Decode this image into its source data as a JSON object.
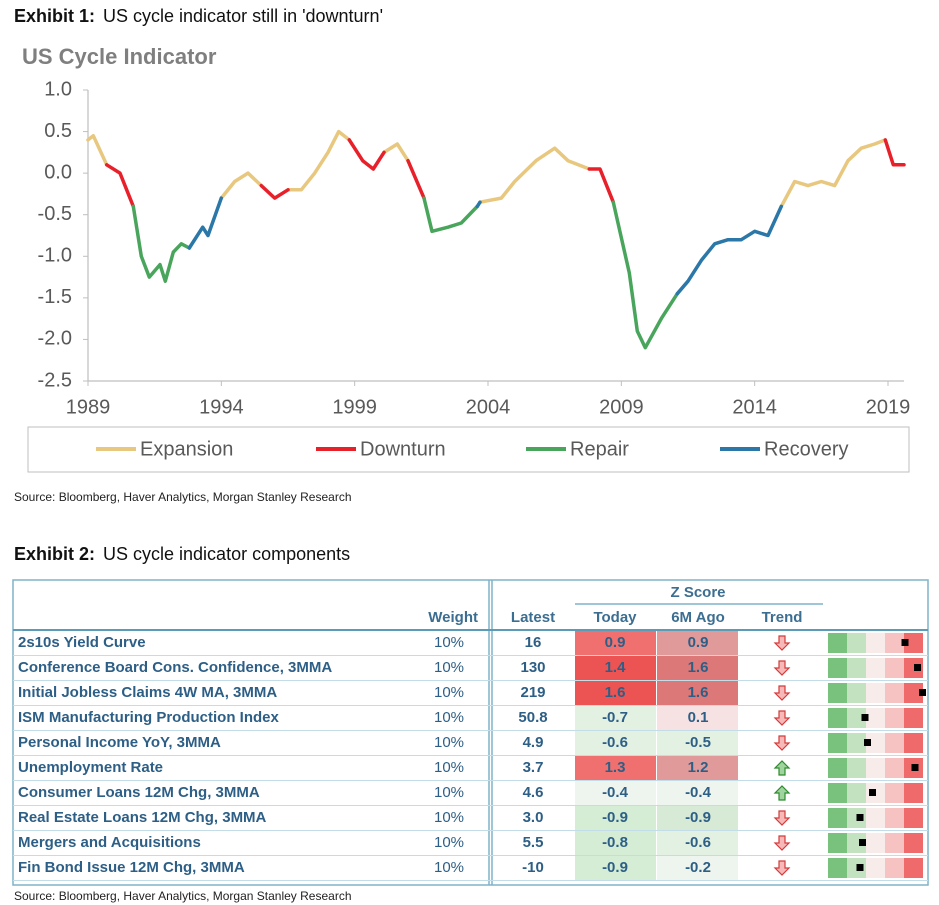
{
  "exhibit1": {
    "label": "Exhibit 1:",
    "caption": "US cycle indicator still in 'downturn'",
    "source": "Source: Bloomberg, Haver Analytics, Morgan Stanley Research"
  },
  "chart_data": {
    "type": "line",
    "title": "US Cycle Indicator",
    "x": [
      1989,
      1989.2,
      1989.7,
      1990.2,
      1990.7,
      1991,
      1991.3,
      1991.7,
      1991.9,
      1992.2,
      1992.5,
      1992.8,
      1993.3,
      1993.5,
      1994,
      1994.5,
      1995,
      1995.5,
      1996,
      1996.5,
      1997,
      1997.5,
      1998,
      1998.4,
      1998.8,
      1999.3,
      1999.7,
      2000.1,
      2000.6,
      2001,
      2001.6,
      2001.9,
      2002.5,
      2003,
      2003.6,
      2003.7,
      2004.5,
      2005,
      2005.8,
      2006.5,
      2007,
      2007.8,
      2008.2,
      2008.7,
      2009.3,
      2009.6,
      2009.9,
      2010.5,
      2011.1,
      2011.5,
      2012,
      2012.5,
      2013,
      2013.5,
      2014,
      2014.5,
      2015,
      2015.5,
      2016,
      2016.5,
      2017,
      2017.5,
      2018,
      2018.5,
      2018.9,
      2019.2,
      2019.6
    ],
    "xlim": [
      1989,
      2019.6
    ],
    "xticks": [
      1989,
      1994,
      1999,
      2004,
      2009,
      2014,
      2019
    ],
    "ylim": [
      -2.5,
      1
    ],
    "yticks": [
      {
        "value": 1,
        "label": "1.0"
      },
      0.5,
      {
        "value": 0,
        "label": "0.0"
      },
      -0.5,
      {
        "value": -1,
        "label": "-1.0"
      },
      -1.5,
      {
        "value": -2,
        "label": "-2.0"
      },
      -2.5
    ],
    "legend": "bottom",
    "series": [
      {
        "name": "Expansion",
        "color": "#e8c77f",
        "values": [
          0.4,
          0.45,
          0.1,
          null,
          null,
          null,
          null,
          null,
          null,
          null,
          null,
          null,
          null,
          null,
          -0.3,
          -0.1,
          0,
          -0.15,
          null,
          -0.2,
          -0.2,
          0,
          0.25,
          0.5,
          0.4,
          null,
          null,
          0.25,
          0.35,
          0.15,
          null,
          null,
          null,
          null,
          null,
          -0.35,
          -0.3,
          -0.1,
          0.15,
          0.3,
          0.15,
          0.05,
          null,
          null,
          null,
          null,
          null,
          null,
          null,
          null,
          null,
          null,
          null,
          null,
          null,
          null,
          -0.4,
          -0.1,
          -0.15,
          -0.1,
          -0.15,
          0.15,
          0.3,
          0.35,
          0.4,
          null,
          null
        ]
      },
      {
        "name": "Downturn",
        "color": "#e8202a",
        "values": [
          null,
          null,
          0.1,
          0,
          -0.4,
          null,
          null,
          null,
          null,
          null,
          null,
          null,
          null,
          null,
          null,
          null,
          null,
          -0.15,
          -0.3,
          -0.2,
          null,
          null,
          null,
          null,
          0.4,
          0.15,
          0.05,
          0.25,
          null,
          0.15,
          -0.3,
          null,
          null,
          null,
          null,
          null,
          null,
          null,
          null,
          null,
          null,
          0.05,
          0.05,
          -0.35,
          null,
          null,
          null,
          null,
          null,
          null,
          null,
          null,
          null,
          null,
          null,
          null,
          null,
          null,
          null,
          null,
          null,
          null,
          null,
          null,
          0.4,
          0.1,
          0.1
        ]
      },
      {
        "name": "Repair",
        "color": "#4aa55c",
        "values": [
          null,
          null,
          null,
          null,
          -0.4,
          -1,
          -1.25,
          -1.1,
          -1.3,
          -0.95,
          -0.85,
          -0.9,
          null,
          null,
          null,
          null,
          null,
          null,
          null,
          null,
          null,
          null,
          null,
          null,
          null,
          null,
          null,
          null,
          null,
          null,
          -0.3,
          -0.7,
          -0.65,
          -0.6,
          -0.4,
          null,
          null,
          null,
          null,
          null,
          null,
          null,
          null,
          -0.35,
          -1.2,
          -1.9,
          -2.1,
          -1.75,
          -1.45,
          null,
          null,
          null,
          null,
          null,
          null,
          null,
          null,
          null,
          null,
          null,
          null,
          null,
          null,
          null,
          null,
          null,
          null
        ]
      },
      {
        "name": "Recovery",
        "color": "#2a77a8",
        "values": [
          null,
          null,
          null,
          null,
          null,
          null,
          null,
          null,
          null,
          null,
          null,
          -0.9,
          -0.65,
          -0.75,
          -0.3,
          null,
          null,
          null,
          null,
          null,
          null,
          null,
          null,
          null,
          null,
          null,
          null,
          null,
          null,
          null,
          null,
          null,
          null,
          null,
          -0.4,
          -0.35,
          null,
          null,
          null,
          null,
          null,
          null,
          null,
          null,
          null,
          null,
          null,
          null,
          -1.45,
          -1.3,
          -1.05,
          -0.85,
          -0.8,
          -0.8,
          -0.7,
          -0.75,
          -0.4,
          null,
          null,
          null,
          null,
          null,
          null,
          null,
          null,
          null,
          null
        ]
      }
    ]
  },
  "exhibit2": {
    "label": "Exhibit 2:",
    "caption": "US cycle indicator components",
    "group_header": "Z Score",
    "columns": [
      "Weight",
      "Latest",
      "Today",
      "6M Ago",
      "Trend"
    ],
    "rows": [
      {
        "name": "2s10s Yield Curve",
        "weight": "10%",
        "latest": "16",
        "today": "0.9",
        "six_month_ago": "0.9",
        "trend": "down"
      },
      {
        "name": "Conference Board Cons. Confidence, 3MMA",
        "weight": "10%",
        "latest": "130",
        "today": "1.4",
        "six_month_ago": "1.6",
        "trend": "down"
      },
      {
        "name": "Initial Jobless Claims 4W MA, 3MMA",
        "weight": "10%",
        "latest": "219",
        "today": "1.6",
        "six_month_ago": "1.6",
        "trend": "down"
      },
      {
        "name": "ISM Manufacturing Production Index",
        "weight": "10%",
        "latest": "50.8",
        "today": "-0.7",
        "six_month_ago": "0.1",
        "trend": "down"
      },
      {
        "name": "Personal Income YoY, 3MMA",
        "weight": "10%",
        "latest": "4.9",
        "today": "-0.6",
        "six_month_ago": "-0.5",
        "trend": "down"
      },
      {
        "name": "Unemployment Rate",
        "weight": "10%",
        "latest": "3.7",
        "today": "1.3",
        "six_month_ago": "1.2",
        "trend": "up"
      },
      {
        "name": "Consumer Loans 12M Chg, 3MMA",
        "weight": "10%",
        "latest": "4.6",
        "today": "-0.4",
        "six_month_ago": "-0.4",
        "trend": "up"
      },
      {
        "name": "Real Estate Loans 12M Chg, 3MMA",
        "weight": "10%",
        "latest": "3.0",
        "today": "-0.9",
        "six_month_ago": "-0.9",
        "trend": "down"
      },
      {
        "name": "Mergers and Acquisitions",
        "weight": "10%",
        "latest": "5.5",
        "today": "-0.8",
        "six_month_ago": "-0.6",
        "trend": "down"
      },
      {
        "name": "Fin Bond Issue 12M Chg, 3MMA",
        "weight": "10%",
        "latest": "-10",
        "today": "-0.9",
        "six_month_ago": "-0.2",
        "trend": "down"
      }
    ],
    "source": "Source: Bloomberg, Haver Analytics, Morgan Stanley Research"
  }
}
